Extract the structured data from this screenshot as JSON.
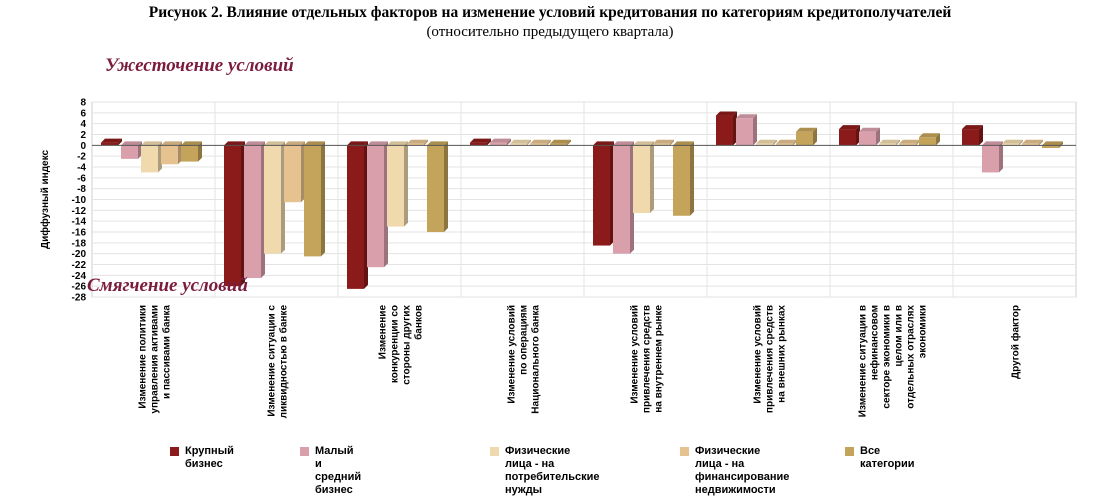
{
  "page": {
    "title": "Рисунок 2. Влияние отдельных факторов на изменение условий кредитования по категориям кредитополучателей",
    "subtitle": "(относительно предыдущего квартала)",
    "annotation_top": "Ужесточение условий",
    "annotation_bottom": "Смягчение условий"
  },
  "chart_data": {
    "type": "bar",
    "ylabel": "Диффузный индекс",
    "ylim": [
      -28,
      8
    ],
    "ytick_step": 2,
    "grid": true,
    "legend_position": "bottom",
    "categories": [
      "Изменение политики управления активами и пассивами банка",
      "Изменение ситуации с ликвидностью в банке",
      "Изменение конкуренции со стороны других банков",
      "Изменение условий по операциям Национального банка",
      "Изменение условий привлечения средств на внутреннем рынке",
      "Изменение условий привлечения средств на внешних рынках",
      "Изменение ситуации в нефинансовом секторе экономики в целом или в отдельных отраслях экономики",
      "Другой фактор"
    ],
    "category_lines": [
      [
        "Изменение политики",
        "управления активами",
        "и пассивами банка"
      ],
      [
        "Изменение ситуации с",
        "ликвидностью в банке"
      ],
      [
        "Изменение",
        "конкуренции со",
        "стороны других",
        "банков"
      ],
      [
        "Изменение условий",
        "по операциям",
        "Национального банка"
      ],
      [
        "Изменение условий",
        "привлечения средств",
        "на внутреннем рынке"
      ],
      [
        "Изменение условий",
        "привлечения средств",
        "на внешних рынках"
      ],
      [
        "Изменение ситуации в",
        "нефинансовом",
        "секторе экономики в",
        "целом или в",
        "отдельных отраслях",
        "экономики"
      ],
      [
        "Другой фактор"
      ]
    ],
    "series": [
      {
        "name": "Крупный бизнес",
        "color": "#8b1a1a",
        "values": [
          0.5,
          -26,
          -26.5,
          0.5,
          -18.5,
          5.5,
          3,
          3
        ]
      },
      {
        "name": "Малый и средний бизнес",
        "color": "#d9a0ac",
        "values": [
          -2.5,
          -24.5,
          -22.5,
          0.5,
          -20,
          5,
          2.5,
          -5
        ]
      },
      {
        "name": "Физические лица - на потребительские нужды",
        "color": "#efd9ad",
        "values": [
          -5,
          -20,
          -15,
          0.3,
          -12.5,
          0.3,
          0.3,
          0.3
        ]
      },
      {
        "name": "Физические лица - на финансирование недвижимости",
        "color": "#e6c291",
        "values": [
          -3.5,
          -10.5,
          0.3,
          0.3,
          0.3,
          0.3,
          0.3,
          0.3
        ]
      },
      {
        "name": "Все категории",
        "color": "#c4a35a",
        "values": [
          -3,
          -20.5,
          -16,
          0.3,
          -13,
          2.5,
          1.5,
          -0.5
        ]
      }
    ],
    "legend_lines": [
      [
        "Крупный бизнес"
      ],
      [
        "Малый и средний бизнес"
      ],
      [
        "Физические лица - на",
        "потребительские нужды"
      ],
      [
        "Физические лица - на",
        "финансирование",
        "недвижимости"
      ],
      [
        "Все категории"
      ]
    ]
  }
}
